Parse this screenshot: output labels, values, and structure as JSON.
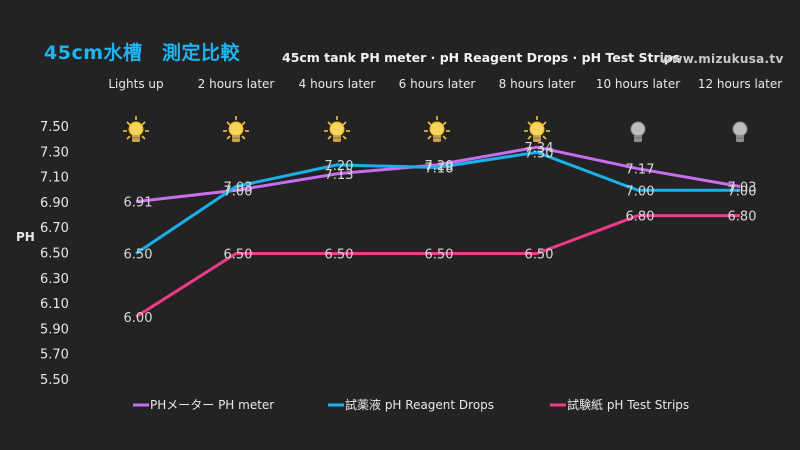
{
  "title": "45cm水槽　測定比較",
  "subtitle": "45cm tank PH meter · pH Reagent Drops · pH Test Strips",
  "site": "www.mizukusa.tv",
  "chart_data": {
    "type": "line",
    "categories": [
      "Lights up",
      "2 hours later",
      "4 hours later",
      "6 hours later",
      "8 hours later",
      "10 hours later",
      "12 hours later"
    ],
    "light_states": [
      "on",
      "on",
      "on",
      "on",
      "on",
      "off",
      "off"
    ],
    "ylabel": "PH",
    "ylim": [
      5.5,
      7.5
    ],
    "yticks": [
      "7.50",
      "7.30",
      "7.10",
      "6.90",
      "6.70",
      "6.50",
      "6.30",
      "6.10",
      "5.90",
      "5.70",
      "5.50"
    ],
    "series": [
      {
        "name": "PHメーター PH meter",
        "color": "#c86ef0",
        "values": [
          6.91,
          7.0,
          7.13,
          7.2,
          7.34,
          7.17,
          7.03
        ],
        "labels": [
          "6.91",
          "7.00",
          "7.13",
          "7.20",
          "7.34",
          "7.17",
          "7.03"
        ]
      },
      {
        "name": "試薬液 pH Reagent Drops",
        "color": "#1ab0ec",
        "values": [
          6.5,
          7.03,
          7.2,
          7.18,
          7.3,
          7.0,
          7.0
        ],
        "labels": [
          "6.50",
          "7.03",
          "7.20",
          "7.18",
          "7.30",
          "7.00",
          "7.00"
        ]
      },
      {
        "name": "試験紙 pH Test Strips",
        "color": "#ef3a8c",
        "values": [
          6.0,
          6.5,
          6.5,
          6.5,
          6.5,
          6.8,
          6.8
        ],
        "labels": [
          "6.00",
          "6.50",
          "6.50",
          "6.50",
          "6.50",
          "6.80",
          "6.80"
        ]
      }
    ],
    "legend": "bottom"
  }
}
